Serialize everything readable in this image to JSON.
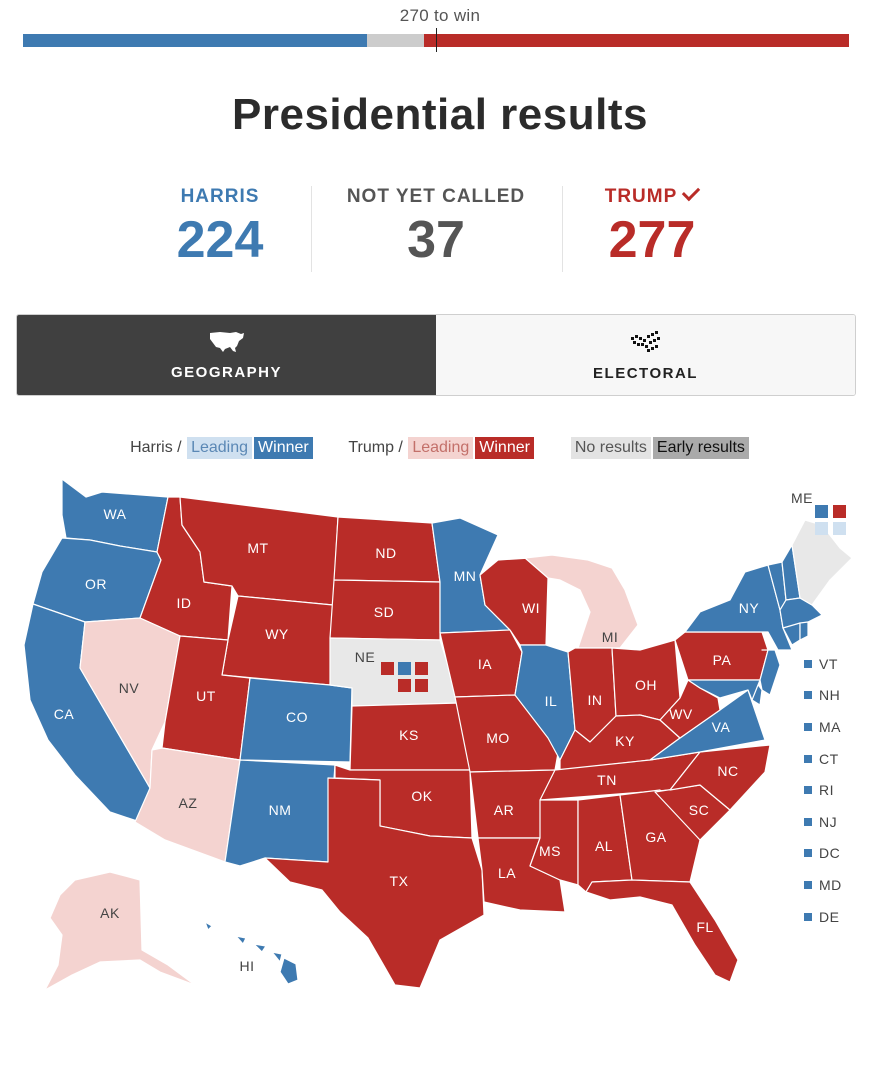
{
  "header": {
    "win_label": "270 to win",
    "title": "Presidential results"
  },
  "colors": {
    "harris_winner": "#3e7ab1",
    "harris_leading": "#cfe0f0",
    "trump_winner": "#b92c28",
    "trump_leading": "#f4d3d0",
    "no_results": "#e8e8e8",
    "early_results": "#aaaaaa",
    "bar_uncalled": "#cccccc"
  },
  "results": {
    "harris": {
      "name": "HARRIS",
      "votes": "224"
    },
    "not_called": {
      "name": "NOT YET CALLED",
      "votes": "37"
    },
    "trump": {
      "name": "TRUMP",
      "votes": "277",
      "winner": true
    }
  },
  "bar": {
    "harris_votes": 224,
    "uncalled_votes": 37,
    "trump_votes": 277,
    "total": 538,
    "threshold": 270
  },
  "view_toggle": {
    "geography": {
      "label": "GEOGRAPHY",
      "active": true,
      "icon": "us-map-icon"
    },
    "electoral": {
      "label": "ELECTORAL",
      "active": false,
      "icon": "cartogram-icon"
    }
  },
  "legend": {
    "harris_label": "Harris /",
    "trump_label": "Trump /",
    "leading": "Leading",
    "winner": "Winner",
    "no_results": "No results",
    "early_results": "Early results"
  },
  "small_states": [
    "VT",
    "NH",
    "MA",
    "CT",
    "RI",
    "NJ",
    "DC",
    "MD",
    "DE"
  ],
  "map_labels": {
    "WA": "WA",
    "OR": "OR",
    "CA": "CA",
    "ID": "ID",
    "NV": "NV",
    "MT": "MT",
    "WY": "WY",
    "UT": "UT",
    "AZ": "AZ",
    "CO": "CO",
    "NM": "NM",
    "ND": "ND",
    "SD": "SD",
    "NE": "NE",
    "KS": "KS",
    "OK": "OK",
    "TX": "TX",
    "MN": "MN",
    "IA": "IA",
    "MO": "MO",
    "AR": "AR",
    "LA": "LA",
    "WI": "WI",
    "IL": "IL",
    "MI": "MI",
    "IN": "IN",
    "OH": "OH",
    "KY": "KY",
    "TN": "TN",
    "MS": "MS",
    "AL": "AL",
    "GA": "GA",
    "FL": "FL",
    "SC": "SC",
    "NC": "NC",
    "VA": "VA",
    "WV": "WV",
    "PA": "PA",
    "NY": "NY",
    "ME": "ME",
    "AK": "AK",
    "HI": "HI"
  }
}
